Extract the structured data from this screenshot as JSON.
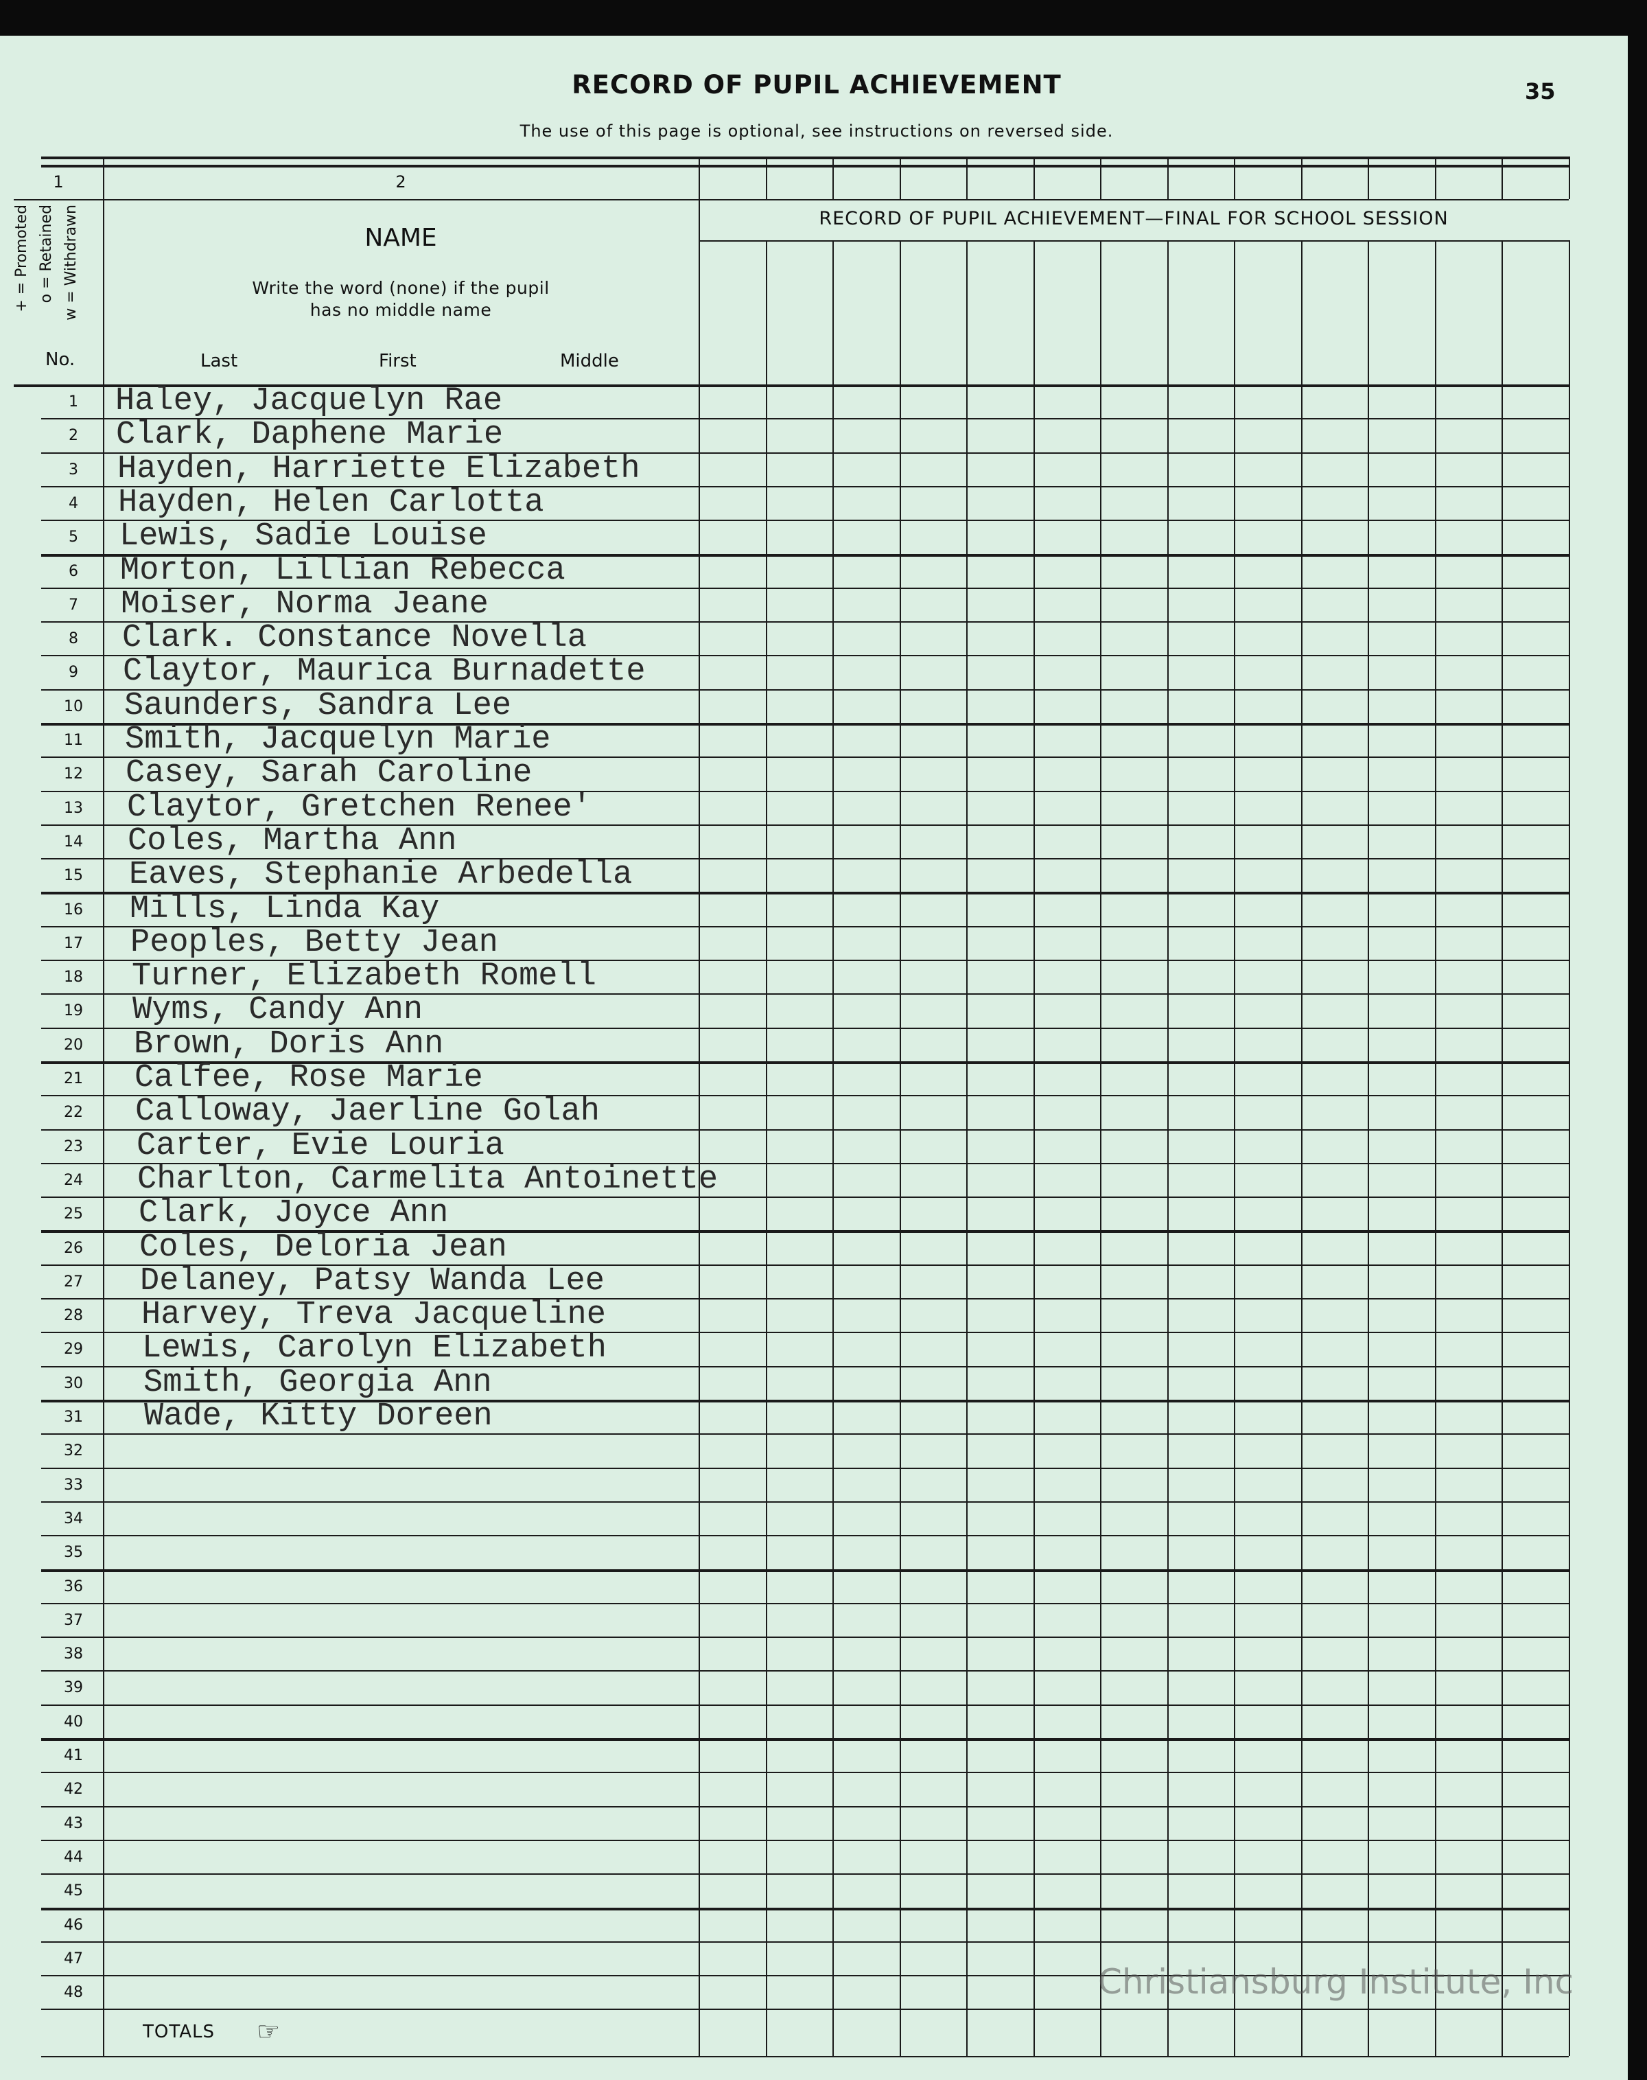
{
  "header": {
    "title": "RECORD OF PUPIL ACHIEVEMENT",
    "page_number": "35",
    "subtitle": "The use of this page is optional, see instructions on reversed side."
  },
  "columns": {
    "col1_number": "1",
    "col2_number": "2",
    "name_heading": "NAME",
    "name_instruction_line1": "Write the word (none) if the pupil",
    "name_instruction_line2": "has no middle name",
    "last_label": "Last",
    "first_label": "First",
    "middle_label": "Middle",
    "status_legend": "+ = Promoted   o = Retained   w = Withdrawn",
    "no_label": "No.",
    "session_heading": "RECORD OF PUPIL ACHIEVEMENT—FINAL FOR SCHOOL SESSION",
    "achievement_column_count": 13
  },
  "rows": [
    {
      "no": "1",
      "name": "Haley, Jacquelyn Rae"
    },
    {
      "no": "2",
      "name": "Clark, Daphene Marie"
    },
    {
      "no": "3",
      "name": "Hayden, Harriette Elizabeth"
    },
    {
      "no": "4",
      "name": "Hayden, Helen Carlotta"
    },
    {
      "no": "5",
      "name": "Lewis, Sadie Louise"
    },
    {
      "no": "6",
      "name": "Morton, Lillian Rebecca"
    },
    {
      "no": "7",
      "name": "Moiser, Norma Jeane"
    },
    {
      "no": "8",
      "name": "Clark. Constance Novella"
    },
    {
      "no": "9",
      "name": "Claytor, Maurica Burnadette"
    },
    {
      "no": "10",
      "name": "Saunders, Sandra Lee"
    },
    {
      "no": "11",
      "name": "Smith, Jacquelyn Marie"
    },
    {
      "no": "12",
      "name": "Casey, Sarah Caroline"
    },
    {
      "no": "13",
      "name": "Claytor, Gretchen Renee'"
    },
    {
      "no": "14",
      "name": "Coles, Martha Ann"
    },
    {
      "no": "15",
      "name": "Eaves, Stephanie Arbedella"
    },
    {
      "no": "16",
      "name": "Mills, Linda Kay"
    },
    {
      "no": "17",
      "name": "Peoples, Betty Jean"
    },
    {
      "no": "18",
      "name": "Turner, Elizabeth Romell"
    },
    {
      "no": "19",
      "name": "Wyms, Candy Ann"
    },
    {
      "no": "20",
      "name": "Brown, Doris Ann"
    },
    {
      "no": "21",
      "name": "Calfee, Rose Marie"
    },
    {
      "no": "22",
      "name": "Calloway, Jaerline Golah"
    },
    {
      "no": "23",
      "name": "Carter, Evie Louria"
    },
    {
      "no": "24",
      "name": "Charlton, Carmelita Antoinette"
    },
    {
      "no": "25",
      "name": "Clark, Joyce Ann"
    },
    {
      "no": "26",
      "name": "Coles, Deloria Jean"
    },
    {
      "no": "27",
      "name": "Delaney, Patsy Wanda Lee"
    },
    {
      "no": "28",
      "name": "Harvey, Treva Jacqueline"
    },
    {
      "no": "29",
      "name": "Lewis, Carolyn Elizabeth"
    },
    {
      "no": "30",
      "name": "Smith, Georgia Ann"
    },
    {
      "no": "31",
      "name": "Wade, Kitty Doreen"
    },
    {
      "no": "32",
      "name": ""
    },
    {
      "no": "33",
      "name": ""
    },
    {
      "no": "34",
      "name": ""
    },
    {
      "no": "35",
      "name": ""
    },
    {
      "no": "36",
      "name": ""
    },
    {
      "no": "37",
      "name": ""
    },
    {
      "no": "38",
      "name": ""
    },
    {
      "no": "39",
      "name": ""
    },
    {
      "no": "40",
      "name": ""
    },
    {
      "no": "41",
      "name": ""
    },
    {
      "no": "42",
      "name": ""
    },
    {
      "no": "43",
      "name": ""
    },
    {
      "no": "44",
      "name": ""
    },
    {
      "no": "45",
      "name": ""
    },
    {
      "no": "46",
      "name": ""
    },
    {
      "no": "47",
      "name": ""
    },
    {
      "no": "48",
      "name": ""
    }
  ],
  "footer": {
    "totals_label": "TOTALS",
    "totals_icon": "pointing-hand-icon",
    "watermark": "Christiansburg Institute, Inc"
  },
  "colors": {
    "paper": "#dcefe3",
    "ink": "#1a1a1a",
    "background": "#0b0b0b"
  }
}
